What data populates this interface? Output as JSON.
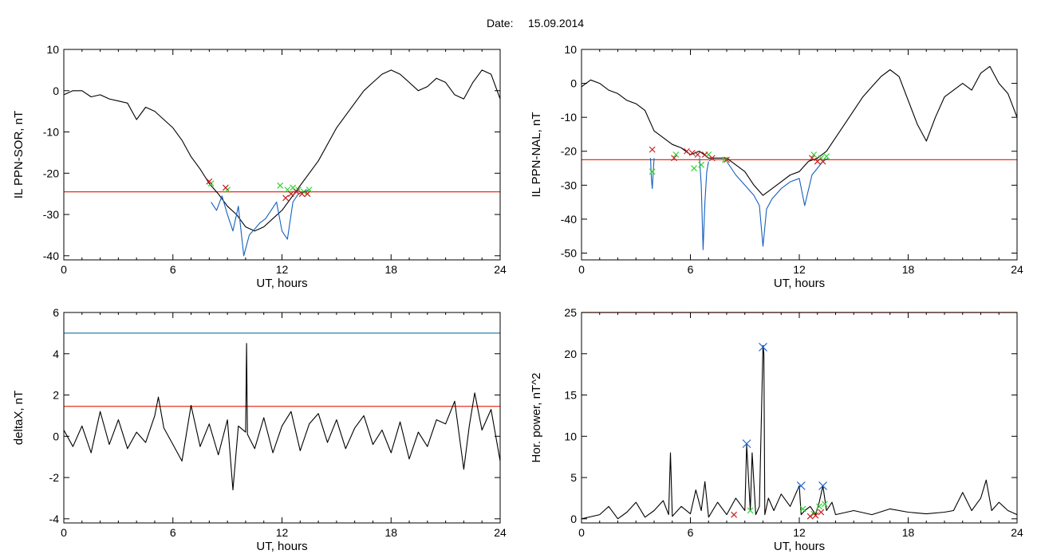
{
  "figure": {
    "title_label": "Date:",
    "title_date": "15.09.2014"
  },
  "colors": {
    "background": "#ffffff",
    "trace": "#000000",
    "event_trace": "#1560bd",
    "red_threshold": "#e8311a",
    "blue_threshold": "#2c7fa8",
    "green_marker": "#2fd42f",
    "red_marker": "#c81e1e",
    "blue_marker": "#2266cc"
  },
  "chart_data": [
    {
      "id": "ppn-sor",
      "type": "line",
      "title": "",
      "xlabel": "UT, hours",
      "ylabel": "IL PPN-SOR, nT",
      "xlim": [
        0,
        24
      ],
      "ylim": [
        -41,
        10
      ],
      "xticks": [
        0,
        6,
        12,
        18,
        24
      ],
      "yticks": [
        10,
        0,
        -10,
        -20,
        -30,
        -40
      ],
      "grid": false,
      "threshold": {
        "value": -24.5,
        "color": "red"
      },
      "series": [
        {
          "style": "black",
          "x": [
            0,
            0.5,
            1,
            1.5,
            2,
            2.5,
            3,
            3.5,
            4,
            4.5,
            5,
            5.5,
            6,
            6.5,
            7,
            7.5,
            8,
            8.5,
            9,
            9.5,
            10,
            10.5,
            11,
            11.5,
            12,
            12.5,
            13,
            13.5,
            14,
            14.5,
            15,
            15.5,
            16,
            16.5,
            17,
            17.5,
            18,
            18.5,
            19,
            19.5,
            20,
            20.5,
            21,
            21.5,
            22,
            22.5,
            23,
            23.5,
            24
          ],
          "y": [
            -1,
            0,
            0,
            -1.5,
            -1,
            -2,
            -2.5,
            -3,
            -7,
            -4,
            -5,
            -7,
            -9,
            -12,
            -16,
            -19,
            -22.5,
            -25,
            -28,
            -30,
            -33,
            -34,
            -33,
            -31,
            -29,
            -26,
            -23,
            -20,
            -17,
            -13,
            -9,
            -6,
            -3,
            0,
            2,
            4,
            5,
            4,
            2,
            0,
            1,
            3,
            2,
            -1,
            -2,
            2,
            5,
            4,
            -2
          ]
        },
        {
          "style": "event",
          "x": [
            8.1,
            8.4,
            8.7,
            9.0,
            9.3,
            9.6,
            9.9,
            10.2,
            10.5,
            10.8,
            11.1,
            11.4,
            11.7,
            12.0,
            12.3,
            12.6,
            12.9,
            13.2,
            13.5
          ],
          "y": [
            -27,
            -29,
            -25.5,
            -30,
            -34,
            -28,
            -40,
            -35,
            -33.5,
            -32,
            -31,
            -29,
            -27,
            -34,
            -36,
            -27,
            -25,
            -24.5,
            -24
          ]
        }
      ],
      "markers": {
        "green": {
          "x": [
            8.1,
            9.0,
            11.9,
            12.3,
            12.6,
            12.9,
            13.2,
            13.5
          ],
          "y": [
            -22.5,
            -24,
            -23,
            -24,
            -23.5,
            -24,
            -24.5,
            -24
          ]
        },
        "red": {
          "x": [
            8.0,
            8.9,
            12.2,
            12.5,
            12.8,
            13.1,
            13.4
          ],
          "y": [
            -22,
            -23.5,
            -26,
            -25,
            -24.5,
            -25,
            -25
          ]
        }
      }
    },
    {
      "id": "ppn-nal",
      "type": "line",
      "title": "",
      "xlabel": "UT, hours",
      "ylabel": "IL PPN-NAL, nT",
      "xlim": [
        0,
        24
      ],
      "ylim": [
        -52,
        10
      ],
      "xticks": [
        0,
        6,
        12,
        18,
        24
      ],
      "yticks": [
        10,
        0,
        -10,
        -20,
        -30,
        -40,
        -50
      ],
      "grid": false,
      "threshold": {
        "value": -22.5,
        "color": "red"
      },
      "series": [
        {
          "style": "black",
          "x": [
            0,
            0.5,
            1,
            1.5,
            2,
            2.5,
            3,
            3.5,
            4,
            4.5,
            5,
            5.5,
            6,
            6.5,
            7,
            7.5,
            8,
            8.5,
            9,
            9.5,
            10,
            10.5,
            11,
            11.5,
            12,
            12.5,
            13,
            13.5,
            14,
            14.5,
            15,
            15.5,
            16,
            16.5,
            17,
            17.5,
            18,
            18.5,
            19,
            19.5,
            20,
            20.5,
            21,
            21.5,
            22,
            22.5,
            23,
            23.5,
            24
          ],
          "y": [
            -1,
            1,
            0,
            -2,
            -3,
            -5,
            -6,
            -8,
            -14,
            -16,
            -18,
            -19,
            -21,
            -20,
            -22,
            -22,
            -22,
            -24,
            -26,
            -30,
            -33,
            -31,
            -29,
            -27,
            -26,
            -23,
            -22,
            -20,
            -16,
            -12,
            -8,
            -4,
            -1,
            2,
            4,
            2,
            -5,
            -12,
            -17,
            -10,
            -4,
            -2,
            0,
            -2,
            3,
            5,
            0,
            -3,
            -10
          ]
        },
        {
          "style": "event",
          "x": [
            3.8,
            3.85,
            3.9,
            3.95,
            4.0
          ],
          "y": [
            -22,
            -28,
            -31,
            -26,
            -22
          ]
        },
        {
          "style": "event",
          "x": [
            6.5,
            6.6,
            6.7,
            6.8,
            6.9,
            7.0
          ],
          "y": [
            -22,
            -30,
            -49,
            -35,
            -26,
            -23
          ]
        },
        {
          "style": "event",
          "x": [
            8.0,
            8.5,
            9.0,
            9.5,
            9.8,
            10.0,
            10.2,
            10.5,
            11.0,
            11.5,
            12.0,
            12.3,
            12.7,
            13.0,
            13.3,
            13.6
          ],
          "y": [
            -23,
            -27,
            -30,
            -33,
            -36,
            -48,
            -37,
            -34,
            -31,
            -29,
            -28,
            -36,
            -27,
            -25,
            -23,
            -22
          ]
        }
      ],
      "markers": {
        "green": {
          "x": [
            3.9,
            5.2,
            6.2,
            6.6,
            7.0,
            7.9,
            12.8,
            13.2,
            13.5
          ],
          "y": [
            -26,
            -21,
            -25,
            -24,
            -21,
            -22.5,
            -21,
            -22,
            -21.5
          ]
        },
        "red": {
          "x": [
            3.9,
            5.1,
            5.8,
            6.1,
            6.4,
            6.8,
            7.2,
            8.0,
            12.7,
            13.0,
            13.3
          ],
          "y": [
            -19.5,
            -22,
            -20,
            -20.5,
            -21,
            -21,
            -22,
            -22.5,
            -22,
            -23,
            -23
          ]
        }
      }
    },
    {
      "id": "deltax",
      "type": "line",
      "title": "",
      "xlabel": "UT, hours",
      "ylabel": "deltaX, nT",
      "xlim": [
        0,
        24
      ],
      "ylim": [
        -4.2,
        6
      ],
      "xticks": [
        0,
        6,
        12,
        18,
        24
      ],
      "yticks": [
        6,
        4,
        2,
        0,
        -2,
        -4
      ],
      "grid": false,
      "thresholds": [
        {
          "value": 5.0,
          "color": "blue"
        },
        {
          "value": 1.45,
          "color": "red"
        }
      ],
      "series": [
        {
          "style": "black",
          "x": [
            0,
            0.5,
            1,
            1.5,
            2,
            2.5,
            3,
            3.5,
            4,
            4.5,
            5,
            5.2,
            5.5,
            6,
            6.5,
            7,
            7.5,
            8,
            8.5,
            9,
            9.3,
            9.6,
            10,
            10.05,
            10.1,
            10.5,
            11,
            11.5,
            12,
            12.5,
            13,
            13.5,
            14,
            14.5,
            15,
            15.5,
            16,
            16.5,
            17,
            17.5,
            18,
            18.5,
            19,
            19.5,
            20,
            20.5,
            21,
            21.5,
            22,
            22.3,
            22.6,
            23,
            23.5,
            24
          ],
          "y": [
            0.3,
            -0.5,
            0.5,
            -0.8,
            1.2,
            -0.4,
            0.8,
            -0.6,
            0.2,
            -0.3,
            1.0,
            1.9,
            0.4,
            -0.4,
            -1.2,
            1.5,
            -0.5,
            0.6,
            -0.9,
            0.8,
            -2.6,
            0.5,
            0.2,
            4.5,
            0.1,
            -0.6,
            0.9,
            -0.8,
            0.5,
            1.2,
            -0.7,
            0.6,
            1.1,
            -0.3,
            0.8,
            -0.6,
            0.4,
            1.0,
            -0.4,
            0.3,
            -0.8,
            0.7,
            -1.1,
            0.2,
            -0.5,
            0.8,
            0.6,
            1.7,
            -1.6,
            0.5,
            2.1,
            0.3,
            1.3,
            -1.2
          ]
        }
      ],
      "markers": {
        "green": {
          "x": [],
          "y": []
        },
        "red": {
          "x": [],
          "y": []
        }
      }
    },
    {
      "id": "hor-power",
      "type": "line",
      "title": "",
      "xlabel": "UT, hours",
      "ylabel": "Hor. power, nT^2",
      "xlim": [
        0,
        24
      ],
      "ylim": [
        -0.5,
        25
      ],
      "xticks": [
        0,
        6,
        12,
        18,
        24
      ],
      "yticks": [
        25,
        20,
        15,
        10,
        5,
        0
      ],
      "grid": false,
      "threshold": {
        "value": 25,
        "color": "red"
      },
      "series": [
        {
          "style": "black",
          "x": [
            0,
            1,
            1.5,
            2,
            2.5,
            3,
            3.5,
            4,
            4.5,
            4.8,
            4.9,
            5.0,
            5.5,
            6,
            6.3,
            6.6,
            6.8,
            7,
            7.5,
            8,
            8.5,
            9.0,
            9.1,
            9.3,
            9.4,
            9.6,
            9.8,
            10.0,
            10.05,
            10.1,
            10.3,
            10.6,
            11,
            11.5,
            12.0,
            12.1,
            12.3,
            12.6,
            12.9,
            13.1,
            13.3,
            13.5,
            13.8,
            14,
            15,
            16,
            17,
            18,
            19,
            20,
            20.5,
            21,
            21.5,
            22,
            22.3,
            22.6,
            23,
            23.5,
            24
          ],
          "y": [
            0,
            0.5,
            1.5,
            0,
            0.8,
            2.0,
            0.2,
            1.0,
            2.2,
            0.5,
            8.0,
            0.3,
            1.5,
            0.6,
            3.5,
            1.0,
            4.5,
            0.2,
            2.0,
            0.5,
            2.5,
            1.0,
            9.0,
            1.0,
            8.0,
            0.5,
            1.5,
            21.0,
            20.0,
            0.5,
            2.5,
            1.0,
            3.0,
            1.5,
            4.0,
            0.5,
            1.0,
            1.5,
            0.5,
            2.0,
            4.0,
            1.0,
            2.0,
            0.5,
            1.0,
            0.5,
            1.2,
            0.8,
            0.6,
            0.8,
            1.0,
            3.2,
            1.0,
            2.5,
            4.7,
            1.0,
            2.0,
            1.0,
            0.5
          ]
        }
      ],
      "markers": {
        "blue": {
          "x": [
            9.1,
            10.0,
            12.1,
            13.3
          ],
          "y": [
            9.1,
            20.8,
            4.0,
            4.0
          ]
        },
        "green": {
          "x": [
            9.3,
            12.2,
            12.8,
            13.1,
            13.4
          ],
          "y": [
            1.0,
            1.2,
            0.6,
            1.5,
            1.8
          ]
        },
        "red": {
          "x": [
            8.4,
            12.6,
            12.9,
            13.2
          ],
          "y": [
            0.5,
            0.3,
            0.4,
            0.8
          ]
        }
      }
    }
  ]
}
